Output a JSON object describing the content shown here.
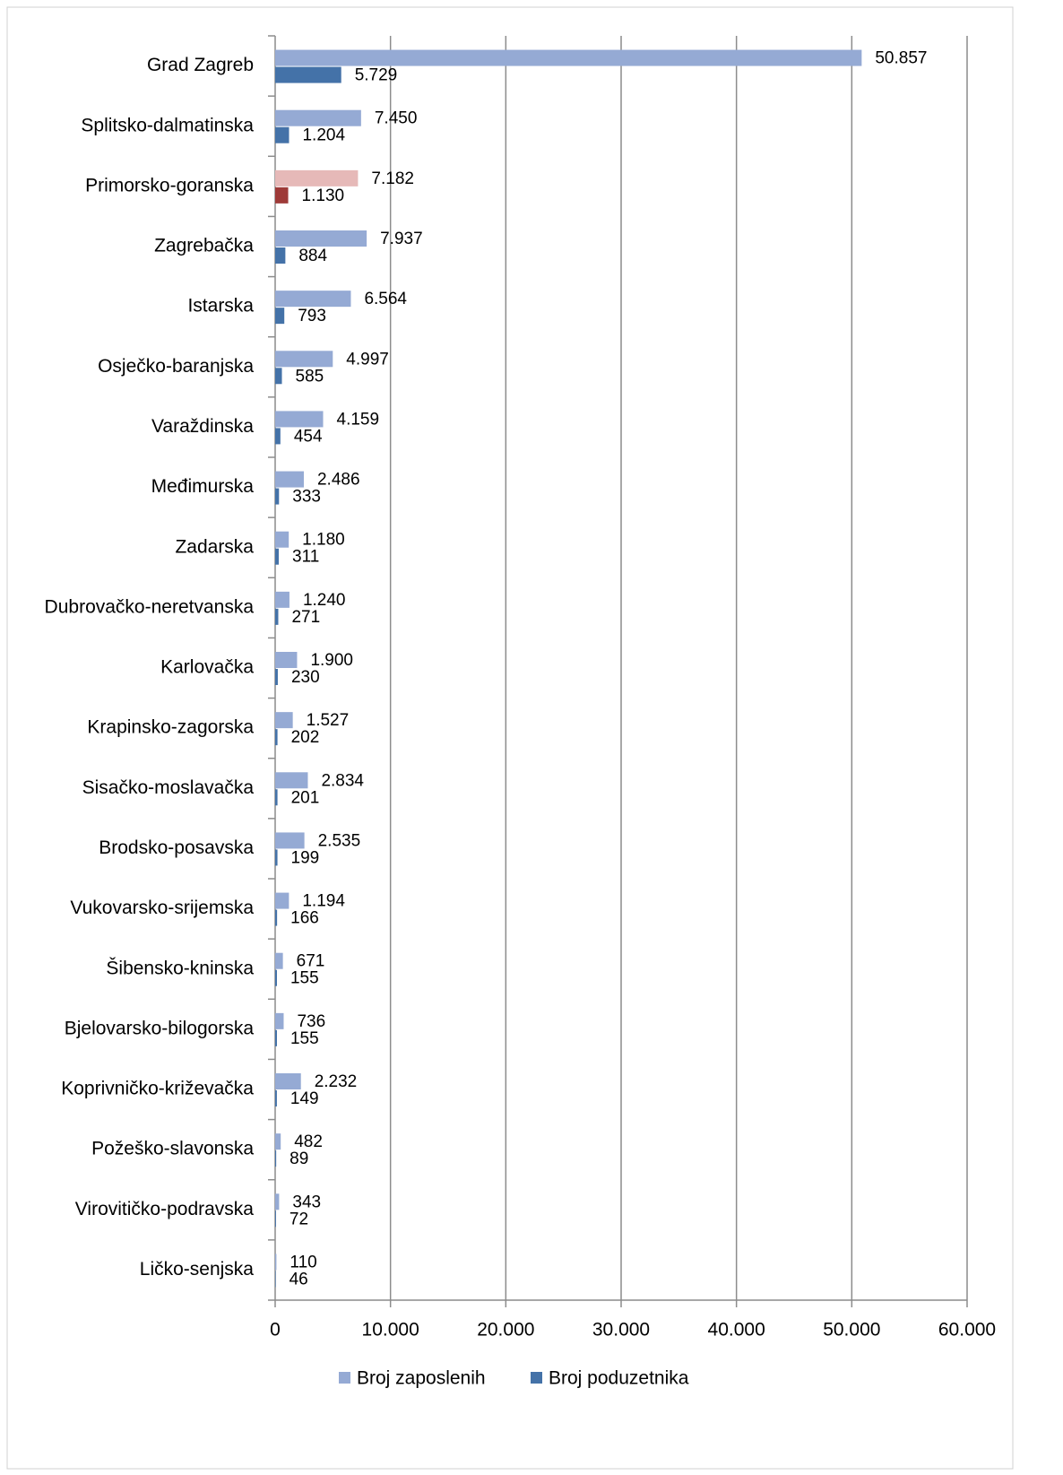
{
  "chart_data": {
    "type": "hbar",
    "categories": [
      "Grad Zagreb",
      "Splitsko-dalmatinska",
      "Primorsko-goranska",
      "Zagrebačka",
      "Istarska",
      "Osječko-baranjska",
      "Varaždinska",
      "Međimurska",
      "Zadarska",
      "Dubrovačko-neretvanska",
      "Karlovačka",
      "Krapinsko-zagorska",
      "Sisačko-moslavačka",
      "Brodsko-posavska",
      "Vukovarsko-srijemska",
      "Šibensko-kninska",
      "Bjelovarsko-bilogorska",
      "Koprivničko-križevačka",
      "Požeško-slavonska",
      "Virovitičko-podravska",
      "Ličko-senjska"
    ],
    "series": [
      {
        "name": "Broj zaposlenih",
        "color": "#95aad4",
        "colors": [
          "#95aad4",
          "#95aad4",
          "#e6b9b8",
          "#95aad4",
          "#95aad4",
          "#95aad4",
          "#95aad4",
          "#95aad4",
          "#95aad4",
          "#95aad4",
          "#95aad4",
          "#95aad4",
          "#95aad4",
          "#95aad4",
          "#95aad4",
          "#95aad4",
          "#95aad4",
          "#95aad4",
          "#95aad4",
          "#95aad4",
          "#95aad4"
        ],
        "values": [
          50857,
          7450,
          7182,
          7937,
          6564,
          4997,
          4159,
          2486,
          1180,
          1240,
          1900,
          1527,
          2834,
          2535,
          1194,
          671,
          736,
          2232,
          482,
          343,
          110
        ],
        "value_labels": [
          "50.857",
          "7.450",
          "7.182",
          "7.937",
          "6.564",
          "4.997",
          "4.159",
          "2.486",
          "1.180",
          "1.240",
          "1.900",
          "1.527",
          "2.834",
          "2.535",
          "1.194",
          "671",
          "736",
          "2.232",
          "482",
          "343",
          "110"
        ]
      },
      {
        "name": "Broj poduzetnika",
        "color": "#4472a8",
        "colors": [
          "#4472a8",
          "#4472a8",
          "#9e3a38",
          "#4472a8",
          "#4472a8",
          "#4472a8",
          "#4472a8",
          "#4472a8",
          "#4472a8",
          "#4472a8",
          "#4472a8",
          "#4472a8",
          "#4472a8",
          "#4472a8",
          "#4472a8",
          "#4472a8",
          "#4472a8",
          "#4472a8",
          "#4472a8",
          "#4472a8",
          "#4472a8"
        ],
        "values": [
          5729,
          1204,
          1130,
          884,
          793,
          585,
          454,
          333,
          311,
          271,
          230,
          202,
          201,
          199,
          166,
          155,
          155,
          149,
          89,
          72,
          46
        ],
        "value_labels": [
          "5.729",
          "1.204",
          "1.130",
          "884",
          "793",
          "585",
          "454",
          "333",
          "311",
          "271",
          "230",
          "202",
          "201",
          "199",
          "166",
          "155",
          "155",
          "149",
          "89",
          "72",
          "46"
        ]
      }
    ],
    "xlim": [
      0,
      60000
    ],
    "xticks": [
      0,
      {
        "value": 10000,
        "label": "10.000"
      },
      {
        "value": 20000,
        "label": "20.000"
      },
      {
        "value": 30000,
        "label": "30.000"
      },
      {
        "value": 40000,
        "label": "40.000"
      },
      {
        "value": 50000,
        "label": "50.000"
      },
      {
        "value": 60000,
        "label": "60.000"
      }
    ],
    "grid": true,
    "legend": "bottom"
  }
}
